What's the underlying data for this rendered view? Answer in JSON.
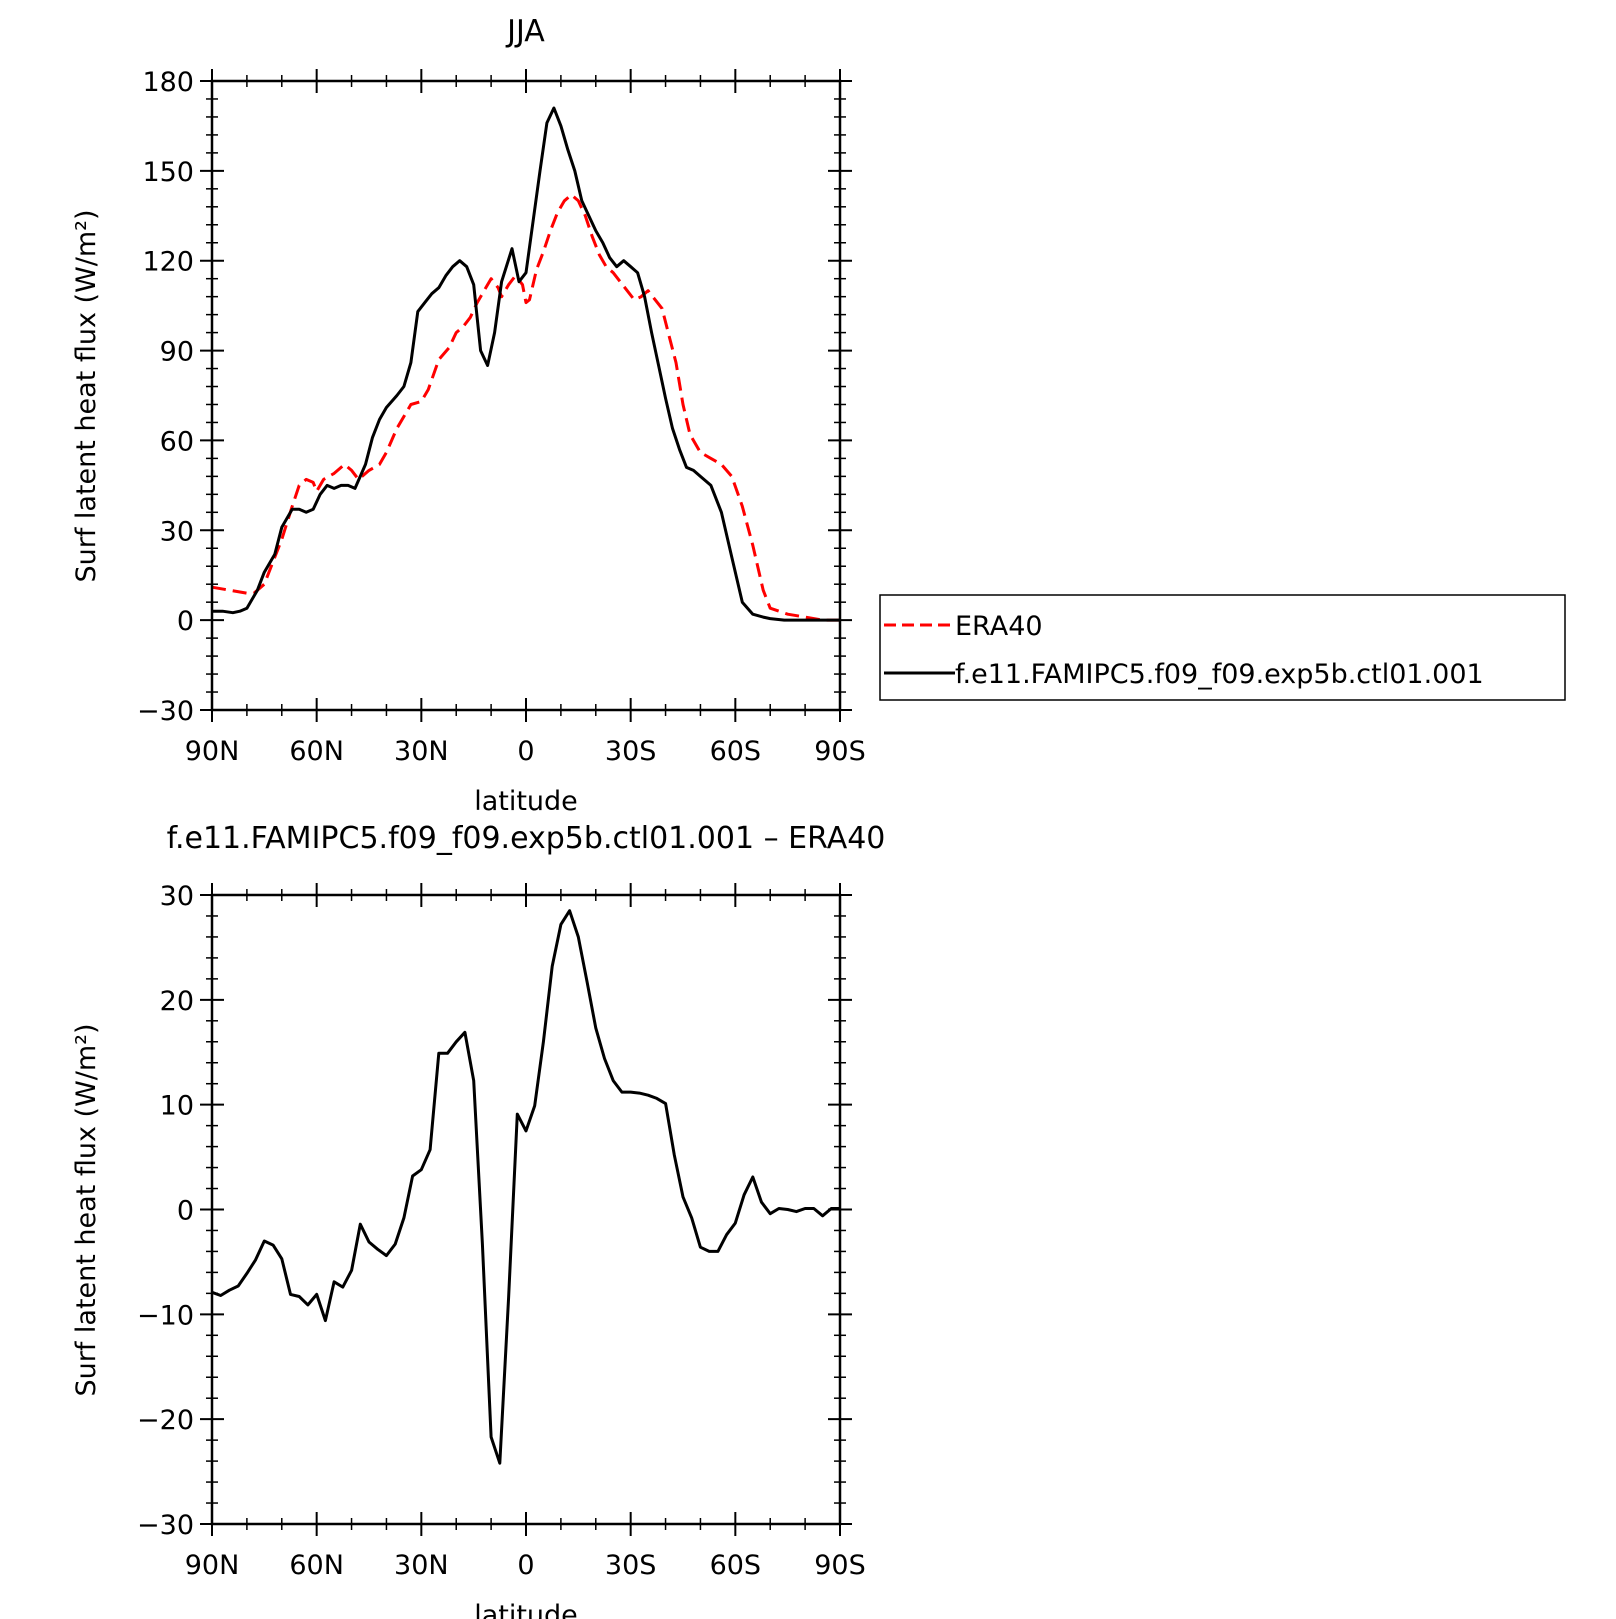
{
  "chart_data": [
    {
      "type": "line",
      "title": "JJA",
      "xlabel": "latitude",
      "ylabel": "Surf latent heat flux (W/m²)",
      "ylim": [
        -30,
        180
      ],
      "yticks": [
        -30,
        0,
        30,
        60,
        90,
        120,
        150,
        180
      ],
      "xlim": [
        90,
        -90
      ],
      "xticks": [
        90,
        60,
        30,
        0,
        -30,
        -60,
        -90
      ],
      "xtick_labels": [
        "90N",
        "60N",
        "30N",
        "0",
        "30S",
        "60S",
        "90S"
      ],
      "grid": false,
      "legend_position": "right-outside",
      "series": [
        {
          "name": "ERA40",
          "color": "#ff0000",
          "style": "dashed",
          "x": [
            90,
            85,
            80,
            78,
            75,
            73,
            70,
            67,
            65,
            63,
            61,
            60,
            58,
            55,
            52,
            50,
            48,
            45,
            42,
            40,
            37,
            35,
            33,
            30,
            28,
            25,
            22,
            20,
            18,
            16,
            14,
            12,
            10,
            8,
            7,
            5,
            3,
            1,
            0,
            -1,
            -3,
            -5,
            -7,
            -9,
            -11,
            -13,
            -15,
            -17,
            -19,
            -21,
            -23,
            -25,
            -27,
            -29,
            -31,
            -33,
            -35,
            -37,
            -39,
            -41,
            -43,
            -45,
            -47,
            -50,
            -53,
            -56,
            -59,
            -62,
            -65,
            -68,
            -70,
            -75,
            -80,
            -85,
            -90
          ],
          "y": [
            11,
            10,
            9,
            9,
            12,
            18,
            27,
            38,
            45,
            47,
            46,
            43,
            47,
            49,
            52,
            50,
            47,
            50,
            52,
            56,
            64,
            68,
            72,
            73,
            77,
            87,
            91,
            96,
            98,
            101,
            106,
            110,
            114,
            111,
            108,
            112,
            115,
            112,
            106,
            107,
            117,
            123,
            130,
            136,
            140,
            142,
            140,
            135,
            128,
            122,
            118,
            116,
            113,
            110,
            107,
            108,
            110,
            107,
            104,
            95,
            86,
            72,
            62,
            56,
            54,
            52,
            48,
            38,
            25,
            10,
            4,
            2,
            1,
            0,
            0
          ]
        },
        {
          "name": "f.e11.FAMIPC5.f09_f09.exp5b.ctl01.001",
          "color": "#000000",
          "style": "solid",
          "x": [
            90,
            87,
            84,
            82,
            80,
            77,
            75,
            72,
            70,
            67,
            65,
            63,
            61,
            59,
            57,
            55,
            53,
            51,
            49,
            46,
            44,
            42,
            40,
            37,
            35,
            33,
            31,
            29,
            27,
            25,
            23,
            21,
            19,
            17,
            15,
            13,
            11,
            9,
            7,
            4,
            2,
            0,
            -2,
            -4,
            -6,
            -8,
            -10,
            -12,
            -14,
            -16,
            -18,
            -20,
            -22,
            -24,
            -26,
            -28,
            -30,
            -32,
            -34,
            -36,
            -38,
            -40,
            -42,
            -44,
            -46,
            -48,
            -50,
            -53,
            -56,
            -59,
            -62,
            -65,
            -68,
            -70,
            -74,
            -80,
            -85,
            -90
          ],
          "y": [
            3,
            3,
            2.5,
            3,
            4,
            10,
            16,
            22,
            31,
            37,
            37,
            36,
            37,
            42,
            45,
            44,
            45,
            45,
            44,
            52,
            61,
            67,
            71,
            75,
            78,
            86,
            103,
            106,
            109,
            111,
            115,
            118,
            120,
            118,
            112,
            90,
            85,
            96,
            113,
            124,
            113,
            116,
            133,
            150,
            166,
            171,
            165,
            157,
            150,
            140,
            135,
            130,
            126,
            121,
            118,
            120,
            118,
            116,
            108,
            96,
            85,
            74,
            64,
            57,
            51,
            50,
            48,
            45,
            36,
            21,
            6,
            2,
            1,
            0.5,
            0,
            0,
            0,
            0
          ]
        }
      ]
    },
    {
      "type": "line",
      "title": "f.e11.FAMIPC5.f09_f09.exp5b.ctl01.001 – ERA40",
      "xlabel": "latitude",
      "ylabel": "Surf latent heat flux (W/m²)",
      "ylim": [
        -30,
        30
      ],
      "yticks": [
        -30,
        -20,
        -10,
        0,
        10,
        20,
        30
      ],
      "xlim": [
        90,
        -90
      ],
      "xticks": [
        90,
        60,
        30,
        0,
        -30,
        -60,
        -90
      ],
      "xtick_labels": [
        "90N",
        "60N",
        "30N",
        "0",
        "30S",
        "60S",
        "90S"
      ],
      "grid": false,
      "series": [
        {
          "color": "#000000",
          "style": "solid",
          "x": [
            90,
            87.5,
            85,
            82.5,
            80,
            77.5,
            75,
            72.5,
            70,
            67.5,
            65,
            62.5,
            60,
            57.5,
            55,
            52.5,
            50,
            47.5,
            45,
            42.5,
            40,
            37.5,
            35,
            32.5,
            30,
            27.5,
            25,
            22.5,
            20,
            17.5,
            15,
            12.5,
            10,
            7.5,
            5,
            2.5,
            0,
            -2.5,
            -5,
            -7.5,
            -10,
            -12.5,
            -15,
            -17.5,
            -20,
            -22.5,
            -25,
            -27.5,
            -30,
            -32.5,
            -35,
            -37.5,
            -40,
            -42.5,
            -45,
            -47.5,
            -50,
            -52.5,
            -55,
            -57.5,
            -60,
            -62.5,
            -65,
            -67.5,
            -70,
            -72.5,
            -75,
            -77.5,
            -80,
            -82.5,
            -85,
            -87.5,
            -90
          ],
          "y": [
            -7.9,
            -8.2,
            -7.7,
            -7.3,
            -6.1,
            -4.8,
            -3,
            -3.4,
            -4.7,
            -8.1,
            -8.3,
            -9.1,
            -8.1,
            -10.6,
            -6.9,
            -7.4,
            -5.8,
            -1.4,
            -3.1,
            -3.8,
            -4.4,
            -3.3,
            -0.8,
            3.2,
            3.8,
            5.7,
            14.9,
            14.9,
            16,
            16.9,
            12.3,
            -3.3,
            -21.7,
            -24.2,
            -8.4,
            9.1,
            7.5,
            9.9,
            16,
            23.2,
            27.2,
            28.5,
            26,
            21.7,
            17.3,
            14.4,
            12.3,
            11.2,
            11.2,
            11.1,
            10.9,
            10.6,
            10.1,
            5.2,
            1.2,
            -0.8,
            -3.6,
            -4,
            -4,
            -2.4,
            -1.3,
            1.4,
            3.1,
            0.7,
            -0.4,
            0.1,
            0,
            -0.2,
            0.1,
            0.1,
            -0.6,
            0.1,
            0.1
          ]
        }
      ]
    }
  ],
  "legend": {
    "entries": [
      "ERA40",
      "f.e11.FAMIPC5.f09_f09.exp5b.ctl01.001"
    ]
  }
}
